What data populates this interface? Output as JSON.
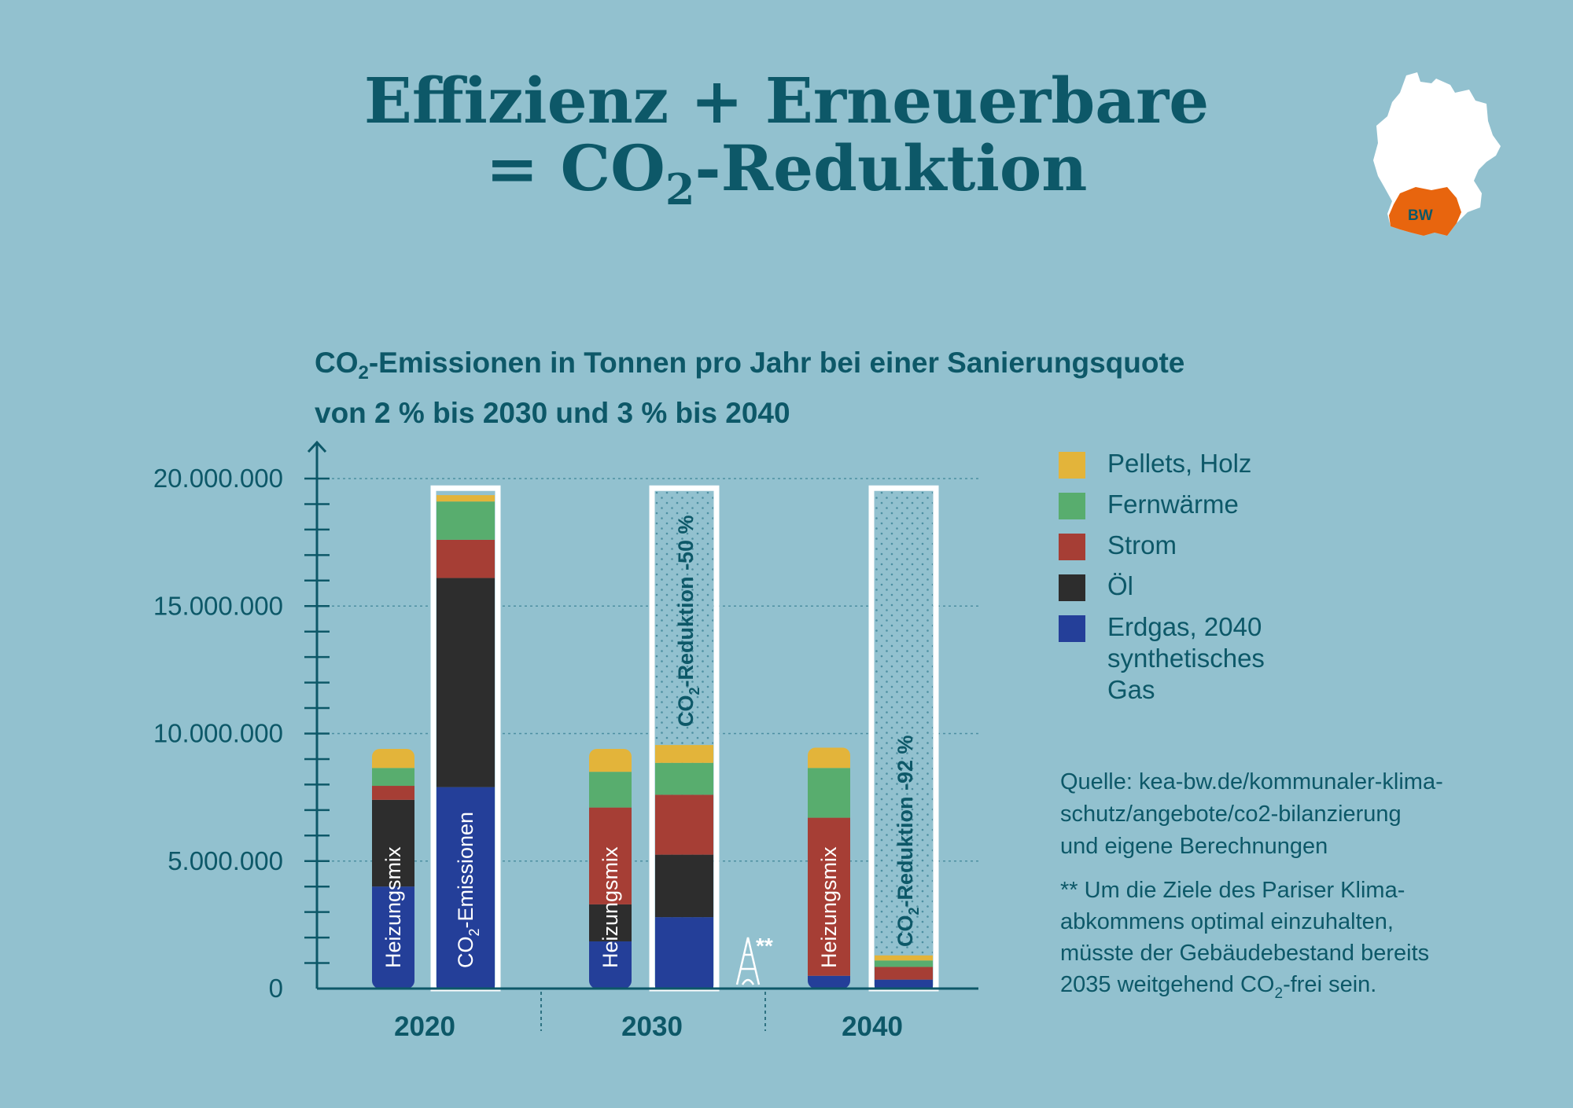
{
  "title": {
    "line1": "Effizienz + Erneuerbare",
    "line2_prefix": "= CO",
    "line2_sub": "2",
    "line2_suffix": "-Reduktion"
  },
  "map": {
    "label": "BW",
    "region_color": "#e8650e"
  },
  "colors": {
    "pellets": "#e3b43a",
    "fernwaerme": "#58ad6e",
    "strom": "#a63e35",
    "oel": "#2d2d2d",
    "erdgas": "#243f99",
    "text": "#0d5868",
    "background": "#92c1cf"
  },
  "chart_data": {
    "type": "bar",
    "title_prefix": "CO",
    "title_sub": "2",
    "title_suffix": "-Emissionen in Tonnen pro Jahr bei einer Sanierungsquote",
    "title_line2": "von 2 % bis 2030 und 3 % bis 2040",
    "ylim": [
      0,
      20000000
    ],
    "yticks": [
      0,
      5000000,
      10000000,
      15000000,
      20000000
    ],
    "ytick_labels": [
      "0",
      "5.000.000",
      "10.000.000",
      "15.000.000",
      "20.000.000"
    ],
    "years": [
      "2020",
      "2030",
      "2040"
    ],
    "series_names": [
      "Erdgas, 2040 synthetisches Gas",
      "Öl",
      "Strom",
      "Fernwärme",
      "Pellets, Holz"
    ],
    "heizungsmix": {
      "label": "Heizungsmix",
      "series": [
        {
          "name": "Erdgas, 2040 synthetisches Gas",
          "values": [
            4000000,
            1850000,
            500000
          ]
        },
        {
          "name": "Öl",
          "values": [
            3400000,
            1450000,
            0
          ]
        },
        {
          "name": "Strom",
          "values": [
            550000,
            3800000,
            6200000
          ]
        },
        {
          "name": "Fernwärme",
          "values": [
            700000,
            1400000,
            1950000
          ]
        },
        {
          "name": "Pellets, Holz",
          "values": [
            750000,
            900000,
            800000
          ]
        }
      ]
    },
    "emissionen": {
      "label_prefix": "CO",
      "label_sub": "2",
      "label_suffix": "-Emissionen",
      "reference_total": 19500000,
      "series": [
        {
          "name": "Erdgas, 2040 synthetisches Gas",
          "values": [
            7900000,
            2800000,
            350000
          ]
        },
        {
          "name": "Öl",
          "values": [
            8200000,
            2450000,
            0
          ]
        },
        {
          "name": "Strom",
          "values": [
            1500000,
            2350000,
            500000
          ]
        },
        {
          "name": "Fernwärme",
          "values": [
            1500000,
            1250000,
            250000
          ]
        },
        {
          "name": "Pellets, Holz",
          "values": [
            250000,
            700000,
            200000
          ]
        }
      ],
      "reduction_labels": [
        "",
        "-Reduktion -50 %",
        "-Reduktion -92 %"
      ],
      "reduction_prefix": "CO",
      "reduction_sub": "2"
    },
    "marker": "**"
  },
  "legend": [
    {
      "label": "Pellets, Holz",
      "key": "pellets"
    },
    {
      "label": "Fernwärme",
      "key": "fernwaerme"
    },
    {
      "label": "Strom",
      "key": "strom"
    },
    {
      "label": "Öl",
      "key": "oel"
    },
    {
      "label_lines": [
        "Erdgas, 2040",
        "synthetisches",
        "Gas"
      ],
      "key": "erdgas"
    }
  ],
  "source": {
    "lines": [
      "Quelle: kea-bw.de/kommunaler-klima-",
      "schutz/angebote/co2-bilanzierung",
      "und eigene Berechnungen"
    ]
  },
  "footnote": {
    "lines": [
      "** Um die Ziele des Pariser Klima-",
      "abkommens optimal einzuhalten,",
      "müsste der Gebäudebestand bereits"
    ],
    "last_prefix": "2035 weitgehend CO",
    "last_sub": "2",
    "last_suffix": "-frei sein."
  }
}
